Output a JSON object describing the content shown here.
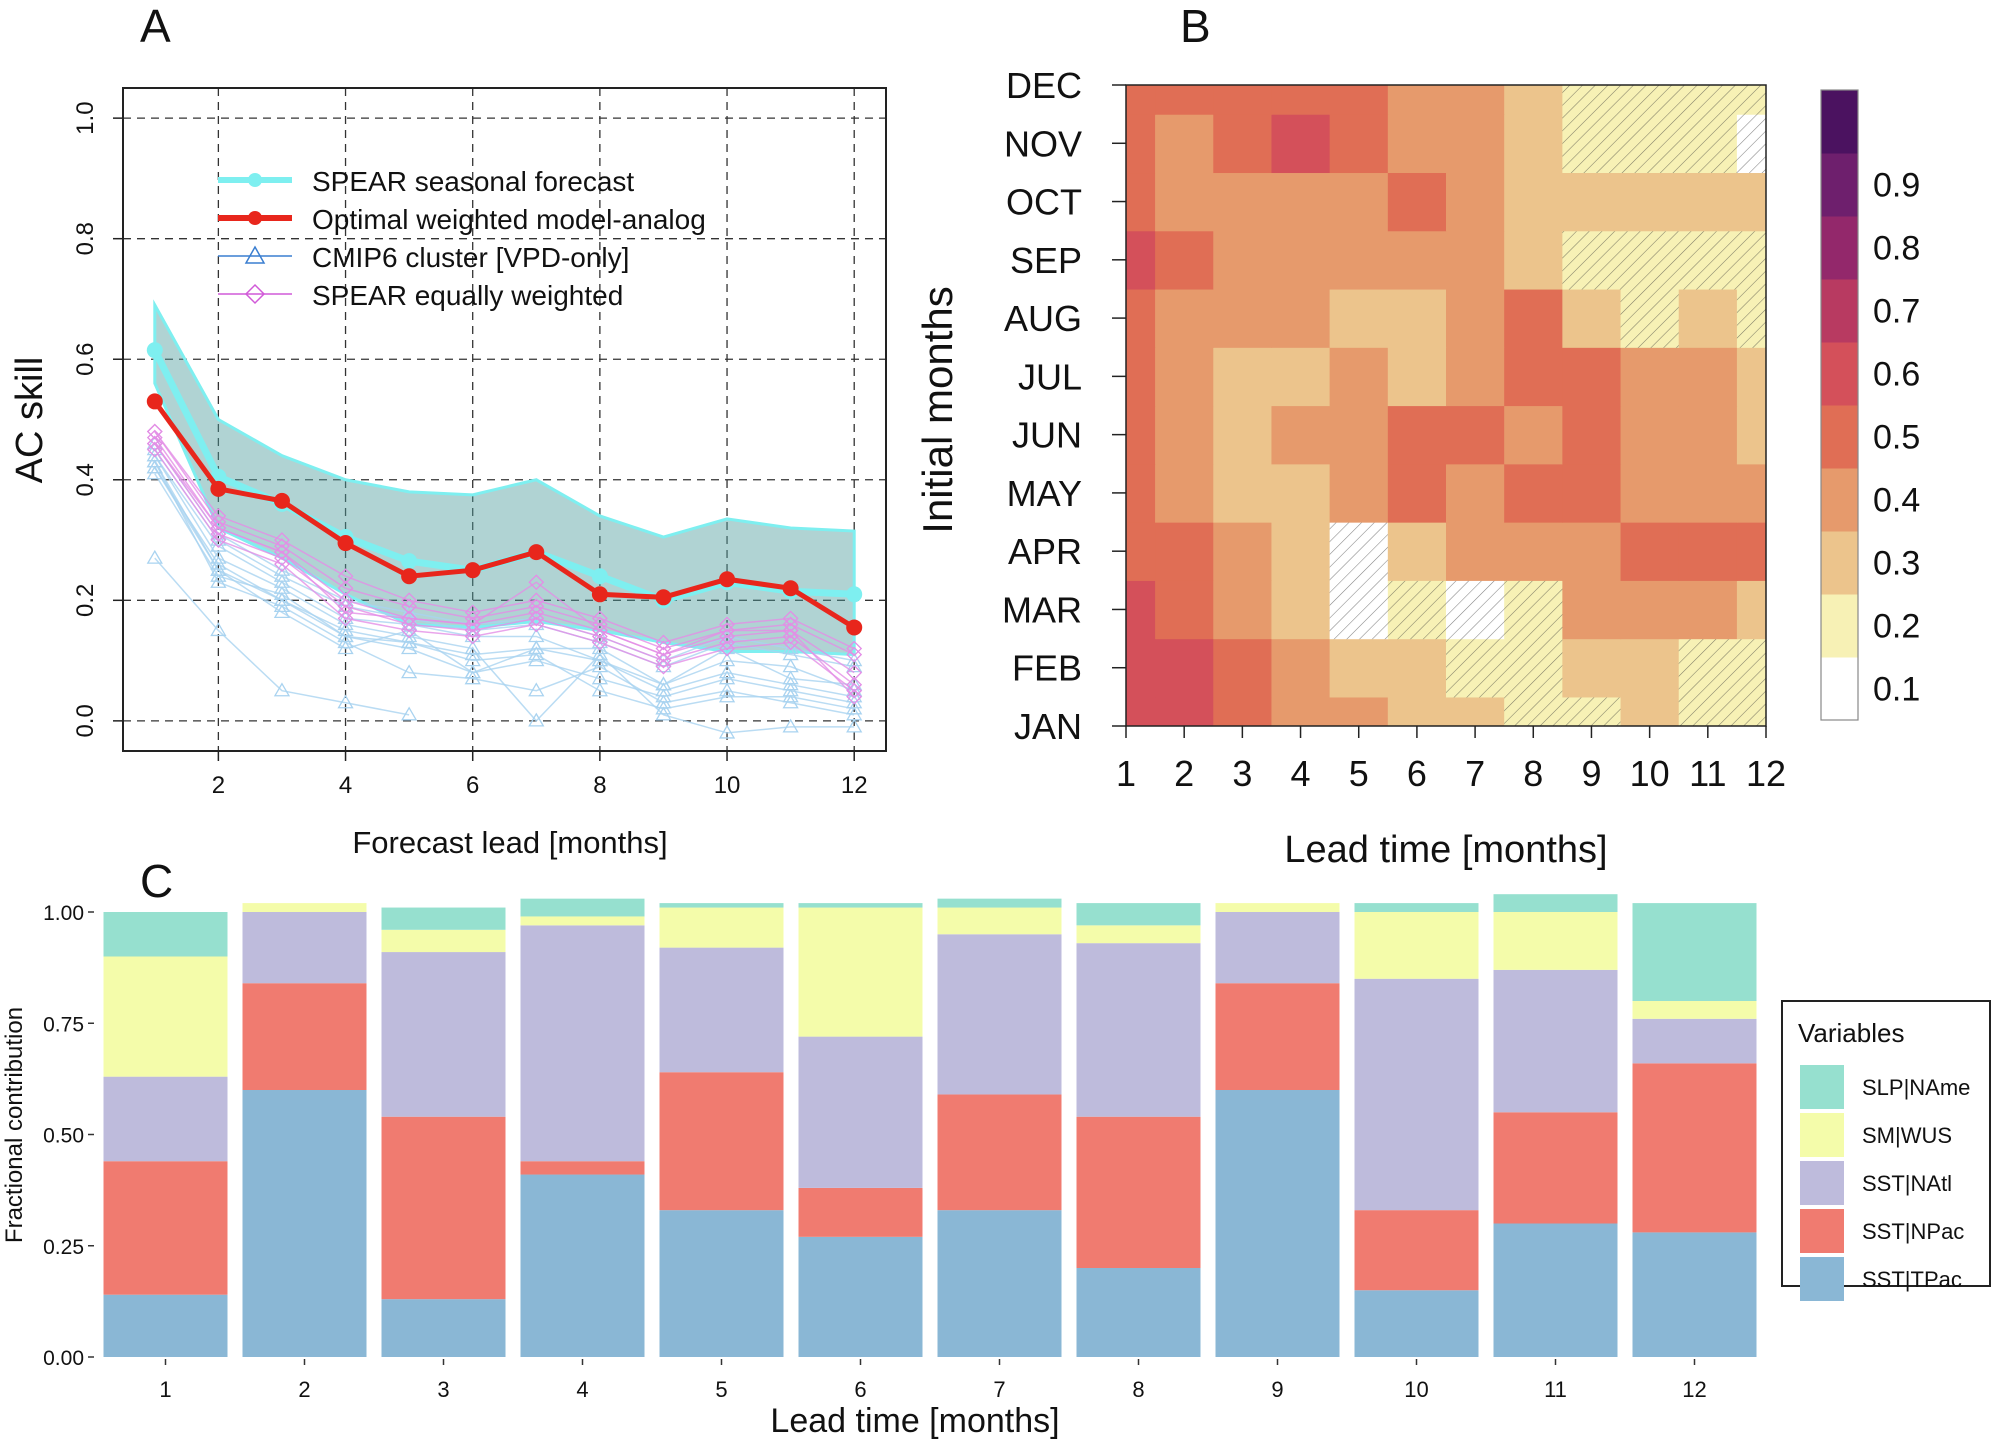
{
  "panel_labels": {
    "a": "A",
    "b": "B",
    "c": "C"
  },
  "colors": {
    "spear_seasonal": "#7eeff0",
    "optimal": "#e8261c",
    "cmip6": "#a9d3f0",
    "spear_equal": "#e38ee6",
    "ribbon": "#4f9d9d",
    "SLP|NAme": "#96e0cf",
    "SM|WUS": "#f4fcaa",
    "SST|NAtl": "#bebbdc",
    "SST|NPac": "#f07b70",
    "SST|TPac": "#8ab7d5"
  },
  "chart_data": [
    {
      "id": "A",
      "type": "line",
      "xlabel": "Forecast lead [months]",
      "ylabel": "AC skill",
      "xlim": [
        0.5,
        12.5
      ],
      "ylim": [
        -0.05,
        1.05
      ],
      "x_ticks": [
        "2",
        "4",
        "6",
        "8",
        "10",
        "12"
      ],
      "y_ticks": [
        "0.0",
        "0.2",
        "0.4",
        "0.6",
        "0.8",
        "1.0"
      ],
      "grid": "dashed",
      "legend_position": "top-right",
      "legend": [
        "SPEAR seasonal forecast",
        "Optimal weighted model-analog",
        "CMIP6 cluster [VPD-only]",
        "SPEAR equally weighted"
      ],
      "x": [
        1,
        2,
        3,
        4,
        5,
        6,
        7,
        8,
        9,
        10,
        11,
        12
      ],
      "series": [
        {
          "name": "SPEAR seasonal forecast",
          "values": [
            0.615,
            0.405,
            0.36,
            0.305,
            0.265,
            0.25,
            0.28,
            0.24,
            0.2,
            0.23,
            0.215,
            0.21
          ]
        },
        {
          "name": "Optimal weighted model-analog",
          "values": [
            0.53,
            0.385,
            0.365,
            0.295,
            0.24,
            0.25,
            0.28,
            0.21,
            0.205,
            0.235,
            0.22,
            0.155
          ]
        }
      ],
      "ribbon": {
        "name": "SPEAR seasonal forecast range",
        "upper": [
          0.69,
          0.5,
          0.44,
          0.4,
          0.38,
          0.375,
          0.4,
          0.34,
          0.305,
          0.335,
          0.32,
          0.315
        ],
        "lower": [
          0.56,
          0.32,
          0.27,
          0.21,
          0.16,
          0.155,
          0.165,
          0.15,
          0.13,
          0.115,
          0.115,
          0.11
        ]
      },
      "cmip6_members": [
        [
          0.41,
          0.24,
          0.21,
          0.14,
          0.12,
          0.08,
          0.12,
          0.12,
          0.06,
          0.1,
          0.09,
          0.05
        ],
        [
          0.27,
          0.15,
          0.05,
          0.03,
          0.01,
          null,
          null,
          null,
          null,
          null,
          null,
          null
        ],
        [
          0.43,
          0.25,
          0.18,
          0.12,
          0.15,
          0.08,
          0.1,
          0.07,
          0.04,
          0.07,
          0.05,
          0.03
        ],
        [
          0.44,
          0.29,
          0.23,
          0.17,
          0.16,
          0.14,
          0.14,
          0.1,
          0.06,
          0.12,
          0.07,
          0.06
        ],
        [
          0.42,
          0.26,
          0.2,
          0.15,
          0.13,
          0.1,
          0.11,
          0.05,
          0.02,
          0.04,
          0.04,
          0.02
        ],
        [
          0.45,
          0.3,
          0.24,
          0.19,
          0.17,
          0.15,
          0.16,
          0.13,
          0.09,
          0.13,
          0.11,
          0.09
        ],
        [
          0.43,
          0.23,
          0.19,
          0.13,
          0.08,
          0.07,
          0.05,
          0.09,
          0.03,
          0.05,
          0.03,
          0.01
        ],
        [
          0.44,
          0.27,
          0.22,
          0.16,
          0.14,
          0.12,
          0.0,
          0.11,
          0.01,
          -0.02,
          -0.01,
          -0.01
        ],
        [
          0.46,
          0.31,
          0.25,
          0.2,
          0.18,
          0.16,
          0.17,
          0.14,
          0.1,
          0.14,
          0.12,
          0.1
        ],
        [
          0.42,
          0.25,
          0.2,
          0.14,
          0.13,
          0.11,
          0.12,
          0.1,
          0.05,
          0.08,
          0.06,
          0.04
        ]
      ],
      "spear_equal_members": [
        [
          0.48,
          0.33,
          0.29,
          0.22,
          0.19,
          0.17,
          0.19,
          0.16,
          0.12,
          0.15,
          0.16,
          0.11
        ],
        [
          0.47,
          0.32,
          0.28,
          0.2,
          0.17,
          0.16,
          0.23,
          0.15,
          0.11,
          0.14,
          0.15,
          0.08
        ],
        [
          0.46,
          0.31,
          0.27,
          0.19,
          0.16,
          0.15,
          0.17,
          0.14,
          0.1,
          0.13,
          0.14,
          0.06
        ],
        [
          0.45,
          0.3,
          0.26,
          0.17,
          0.15,
          0.14,
          0.16,
          0.13,
          0.09,
          0.12,
          0.13,
          0.05
        ],
        [
          0.48,
          0.34,
          0.3,
          0.24,
          0.2,
          0.18,
          0.2,
          0.17,
          0.13,
          0.16,
          0.17,
          0.12
        ],
        [
          0.46,
          0.32,
          0.28,
          0.18,
          0.17,
          0.16,
          0.18,
          0.15,
          0.11,
          0.15,
          0.15,
          0.04
        ]
      ]
    },
    {
      "id": "B",
      "type": "heatmap",
      "xlabel": "Lead time [months]",
      "ylabel": "Initial months",
      "x_ticks": [
        "1",
        "2",
        "3",
        "4",
        "5",
        "6",
        "7",
        "8",
        "9",
        "10",
        "11",
        "12"
      ],
      "y_ticks": [
        "JAN",
        "FEB",
        "MAR",
        "APR",
        "MAY",
        "JUN",
        "JUL",
        "AUG",
        "SEP",
        "OCT",
        "NOV",
        "DEC"
      ],
      "colorbar_ticks": [
        "0.1",
        "0.2",
        "0.3",
        "0.4",
        "0.5",
        "0.6",
        "0.7",
        "0.8",
        "0.9"
      ],
      "colorbar_levels": [
        {
          "value": 0.1,
          "color": "#ffffff"
        },
        {
          "value": 0.2,
          "color": "#f7f1b5"
        },
        {
          "value": 0.3,
          "color": "#ecc48c"
        },
        {
          "value": 0.4,
          "color": "#e69a6c"
        },
        {
          "value": 0.5,
          "color": "#e06e55"
        },
        {
          "value": 0.6,
          "color": "#d4505a"
        },
        {
          "value": 0.7,
          "color": "#b83a61"
        },
        {
          "value": 0.8,
          "color": "#93286b"
        },
        {
          "value": 0.9,
          "color": "#6e1f6d"
        },
        {
          "value": 1.0,
          "color": "#4b1260"
        }
      ],
      "z": [
        [
          0.55,
          0.5,
          0.45,
          0.35,
          0.3,
          0.25,
          0.2,
          0.12,
          0.18,
          0.22,
          0.12,
          0.12
        ],
        [
          0.55,
          0.5,
          0.4,
          0.3,
          0.25,
          0.2,
          0.15,
          0.1,
          0.2,
          0.25,
          0.12,
          0.1
        ],
        [
          0.5,
          0.45,
          0.35,
          0.22,
          0.08,
          0.12,
          0.08,
          0.15,
          0.3,
          0.35,
          0.3,
          0.25
        ],
        [
          0.45,
          0.4,
          0.3,
          0.2,
          0.08,
          0.2,
          0.3,
          0.35,
          0.35,
          0.4,
          0.4,
          0.45
        ],
        [
          0.45,
          0.35,
          0.25,
          0.28,
          0.32,
          0.45,
          0.38,
          0.45,
          0.42,
          0.38,
          0.35,
          0.3
        ],
        [
          0.45,
          0.35,
          0.25,
          0.3,
          0.35,
          0.4,
          0.45,
          0.35,
          0.45,
          0.32,
          0.3,
          0.2
        ],
        [
          0.42,
          0.32,
          0.25,
          0.25,
          0.3,
          0.2,
          0.35,
          0.42,
          0.45,
          0.35,
          0.3,
          0.2
        ],
        [
          0.45,
          0.35,
          0.3,
          0.3,
          0.28,
          0.25,
          0.35,
          0.4,
          0.2,
          0.12,
          0.2,
          0.1
        ],
        [
          0.5,
          0.4,
          0.35,
          0.35,
          0.3,
          0.3,
          0.32,
          0.25,
          0.15,
          0.12,
          0.15,
          0.15
        ],
        [
          0.45,
          0.3,
          0.35,
          0.35,
          0.3,
          0.4,
          0.35,
          0.25,
          0.25,
          0.2,
          0.2,
          0.2
        ],
        [
          0.45,
          0.35,
          0.45,
          0.5,
          0.4,
          0.35,
          0.3,
          0.2,
          0.12,
          0.15,
          0.15,
          0.08
        ],
        [
          0.45,
          0.4,
          0.45,
          0.45,
          0.4,
          0.35,
          0.3,
          0.2,
          0.15,
          0.15,
          0.15,
          0.1
        ]
      ]
    },
    {
      "id": "C",
      "type": "bar",
      "stacked": true,
      "xlabel": "Lead time [months]",
      "ylabel": "Fractional contribution",
      "ylim": [
        0,
        1
      ],
      "y_ticks": [
        "0.00",
        "0.25",
        "0.50",
        "0.75",
        "1.00"
      ],
      "categories": [
        "1",
        "2",
        "3",
        "4",
        "5",
        "6",
        "7",
        "8",
        "9",
        "10",
        "11",
        "12"
      ],
      "legend_title": "Variables",
      "legend_position": "right",
      "legend": [
        "SLP|NAme",
        "SM|WUS",
        "SST|NAtl",
        "SST|NPac",
        "SST|TPac"
      ],
      "series": [
        {
          "name": "SST|TPac",
          "values": [
            0.14,
            0.6,
            0.13,
            0.41,
            0.33,
            0.27,
            0.33,
            0.2,
            0.6,
            0.15,
            0.3,
            0.28
          ]
        },
        {
          "name": "SST|NPac",
          "values": [
            0.3,
            0.24,
            0.41,
            0.03,
            0.31,
            0.11,
            0.26,
            0.34,
            0.24,
            0.18,
            0.25,
            0.38
          ]
        },
        {
          "name": "SST|NAtl",
          "values": [
            0.19,
            0.16,
            0.37,
            0.53,
            0.28,
            0.34,
            0.36,
            0.39,
            0.16,
            0.52,
            0.32,
            0.1
          ]
        },
        {
          "name": "SM|WUS",
          "values": [
            0.27,
            0.02,
            0.05,
            0.02,
            0.09,
            0.29,
            0.06,
            0.04,
            0.02,
            0.15,
            0.13,
            0.04
          ]
        },
        {
          "name": "SLP|NAme",
          "values": [
            0.1,
            0.0,
            0.05,
            0.04,
            0.01,
            0.01,
            0.02,
            0.05,
            0.0,
            0.02,
            0.04,
            0.22
          ]
        }
      ]
    }
  ]
}
